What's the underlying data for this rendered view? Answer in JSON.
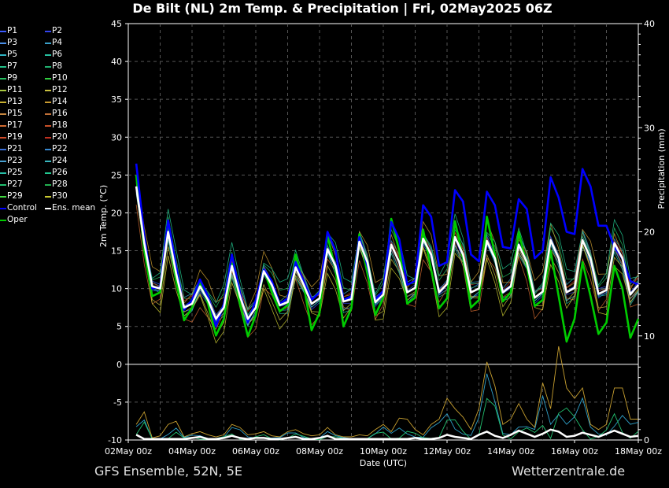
{
  "title": "De Bilt  (NL)  2m Temp. & Precipitation | Fri, 02May2025 06Z",
  "footer": {
    "model": "GFS Ensemble, 52N, 5E",
    "source": "Wetterzentrale.de"
  },
  "legend": [
    {
      "label": "P1",
      "color": "#3b5bff"
    },
    {
      "label": "P2",
      "color": "#3344ee"
    },
    {
      "label": "P3",
      "color": "#4a8fe8"
    },
    {
      "label": "P4",
      "color": "#3aa0c8"
    },
    {
      "label": "P5",
      "color": "#2fb4c4"
    },
    {
      "label": "P6",
      "color": "#26c0a0"
    },
    {
      "label": "P7",
      "color": "#22c088"
    },
    {
      "label": "P8",
      "color": "#20b070"
    },
    {
      "label": "P9",
      "color": "#25c060"
    },
    {
      "label": "P10",
      "color": "#30d040"
    },
    {
      "label": "P11",
      "color": "#a8c840"
    },
    {
      "label": "P12",
      "color": "#c8c040"
    },
    {
      "label": "P13",
      "color": "#c8b030"
    },
    {
      "label": "P14",
      "color": "#c89a30"
    },
    {
      "label": "P15",
      "color": "#c88840"
    },
    {
      "label": "P16",
      "color": "#c07038"
    },
    {
      "label": "P17",
      "color": "#d06a30"
    },
    {
      "label": "P18",
      "color": "#c85028"
    },
    {
      "label": "P19",
      "color": "#d04a28"
    },
    {
      "label": "P20",
      "color": "#c03020"
    },
    {
      "label": "P21",
      "color": "#3a70d8"
    },
    {
      "label": "P22",
      "color": "#3888d0"
    },
    {
      "label": "P23",
      "color": "#48a0d0"
    },
    {
      "label": "P24",
      "color": "#38b8c0"
    },
    {
      "label": "P25",
      "color": "#28c0a8"
    },
    {
      "label": "P26",
      "color": "#22c890"
    },
    {
      "label": "P27",
      "color": "#20c070"
    },
    {
      "label": "P28",
      "color": "#22b050"
    },
    {
      "label": "P29",
      "color": "#40d840"
    },
    {
      "label": "P30",
      "color": "#c8c830"
    },
    {
      "label": "Control",
      "color": "#0000ff"
    },
    {
      "label": "Ens. mean",
      "color": "#ffffff"
    },
    {
      "label": "Oper",
      "color": "#00cc00"
    }
  ],
  "chart_data": {
    "type": "line",
    "xlabel": "Date (UTC)",
    "ylabel": "2m Temp. (°C)",
    "y2label": "Precipitation (mm)",
    "x_ticks": [
      "02May 00z",
      "04May 00z",
      "06May 00z",
      "08May 00z",
      "10May 00z",
      "12May 00z",
      "14May 00z",
      "16May 00z",
      "18May 00z"
    ],
    "x_range_hours": [
      0,
      384
    ],
    "x_step_hours": 6,
    "ylim": [
      -10,
      45
    ],
    "y_ticks": [
      -10,
      -5,
      0,
      5,
      10,
      15,
      20,
      25,
      30,
      35,
      40,
      45
    ],
    "y2lim": [
      0,
      40
    ],
    "y2_ticks": [
      0,
      10,
      20,
      30,
      40
    ],
    "grid": true,
    "series": [
      {
        "name": "Control",
        "color": "#0000ff",
        "x": [
          6,
          12,
          18,
          24,
          30,
          36,
          42,
          48,
          54,
          60,
          66,
          72,
          78,
          84,
          90,
          96,
          102,
          108,
          114,
          120,
          126,
          132,
          138,
          144,
          150,
          156,
          162,
          168,
          174,
          180,
          186,
          192,
          198,
          204,
          210,
          216,
          222,
          228,
          234,
          240,
          246,
          252,
          258,
          264,
          270,
          276,
          282,
          288,
          294,
          300,
          306,
          312,
          318,
          324,
          330,
          336,
          342,
          348,
          354,
          360,
          366,
          372,
          378,
          384
        ],
        "values": [
          26.5,
          17,
          10,
          10.2,
          19,
          13,
          7.2,
          8.5,
          11.2,
          9,
          5,
          8,
          14.5,
          9.5,
          5.5,
          8.5,
          12.5,
          11,
          8,
          8.7,
          13.5,
          11,
          8.5,
          9.5,
          17.5,
          15,
          8.5,
          9,
          16.8,
          13,
          8.5,
          9.7,
          18.8,
          16.5,
          10.5,
          11,
          21,
          19.5,
          13,
          13.5,
          23,
          21.5,
          14.5,
          13.6,
          22.8,
          21,
          15.5,
          15.3,
          21.8,
          20.5,
          14,
          15,
          24.7,
          22,
          17.5,
          17.2,
          25.8,
          23.5,
          18.3,
          18.3,
          15.5,
          14,
          11,
          10.5
        ]
      },
      {
        "name": "Ens. mean",
        "color": "#ffffff",
        "x": [
          6,
          12,
          18,
          24,
          30,
          36,
          42,
          48,
          54,
          60,
          66,
          72,
          78,
          84,
          90,
          96,
          102,
          108,
          114,
          120,
          126,
          132,
          138,
          144,
          150,
          156,
          162,
          168,
          174,
          180,
          186,
          192,
          198,
          204,
          210,
          216,
          222,
          228,
          234,
          240,
          246,
          252,
          258,
          264,
          270,
          276,
          282,
          288,
          294,
          300,
          306,
          312,
          318,
          324,
          330,
          336,
          342,
          348,
          354,
          360,
          366,
          372,
          378,
          384
        ],
        "values": [
          23.5,
          16,
          10.3,
          10,
          17.5,
          12,
          7.5,
          8,
          10.3,
          8.5,
          6,
          7.5,
          13,
          9,
          6,
          7.5,
          12.3,
          10.5,
          7.8,
          8.2,
          12.8,
          10.5,
          8,
          8.7,
          15.2,
          13,
          8.3,
          8.6,
          16.2,
          13.5,
          8.2,
          9.2,
          15.8,
          13.5,
          9.5,
          10.1,
          16.6,
          14.5,
          9.5,
          10.6,
          16.8,
          14.5,
          9.5,
          10,
          16.3,
          14,
          9.5,
          10.3,
          15.8,
          13.5,
          8.8,
          9.6,
          16.4,
          14,
          9.5,
          10.1,
          16.4,
          14,
          9.3,
          9.8,
          16,
          14,
          9.2,
          10.5
        ]
      },
      {
        "name": "Oper",
        "color": "#00cc00",
        "x": [
          6,
          12,
          18,
          24,
          30,
          36,
          42,
          48,
          54,
          60,
          66,
          72,
          78,
          84,
          90,
          96,
          102,
          108,
          114,
          120,
          126,
          132,
          138,
          144,
          150,
          156,
          162,
          168,
          174,
          180,
          186,
          192,
          198,
          204,
          210,
          216,
          222,
          228,
          234,
          240,
          246,
          252,
          258,
          264,
          270,
          276,
          282,
          288,
          294,
          300,
          306,
          312,
          318,
          324,
          330,
          336,
          342,
          348,
          354,
          360,
          366,
          372,
          378,
          384
        ],
        "values": [
          25,
          15,
          9,
          9.5,
          18,
          11,
          5.8,
          7.5,
          10.8,
          8,
          3.8,
          6,
          13.3,
          8,
          3.7,
          6.5,
          12.5,
          9.5,
          7,
          7.8,
          14.5,
          10.5,
          4.5,
          6.8,
          17,
          12.5,
          5,
          7.4,
          17.2,
          12,
          6.5,
          8.8,
          19.2,
          15,
          8,
          8.8,
          17.8,
          12.5,
          7.4,
          8.7,
          18.9,
          14,
          7.5,
          8.5,
          19.5,
          14.5,
          8.3,
          9.5,
          17.5,
          13,
          7.7,
          8.5,
          15,
          9,
          3,
          6,
          13.5,
          9,
          4,
          5.5,
          13,
          10,
          3.5,
          6
        ]
      }
    ],
    "ensemble_spread": [
      {
        "name": "P1",
        "color": "#3b5bff",
        "offset": 0.7
      },
      {
        "name": "P2",
        "color": "#3344ee",
        "offset": -0.8
      },
      {
        "name": "P4",
        "color": "#3aa0c8",
        "offset": 1.4
      },
      {
        "name": "P6",
        "color": "#26c0a0",
        "offset": -1.5
      },
      {
        "name": "P9",
        "color": "#25c060",
        "offset": 2.0
      },
      {
        "name": "P12",
        "color": "#c8c040",
        "offset": -2.2
      },
      {
        "name": "P14",
        "color": "#c89a30",
        "offset": 2.6
      },
      {
        "name": "P17",
        "color": "#d06a30",
        "offset": -2.8
      },
      {
        "name": "P20",
        "color": "#c03020",
        "offset": 1.0
      },
      {
        "name": "P23",
        "color": "#48a0d0",
        "offset": -1.1
      },
      {
        "name": "P26",
        "color": "#22c890",
        "offset": 3.2
      },
      {
        "name": "P30",
        "color": "#c8c830",
        "offset": -3.3
      }
    ],
    "precipitation": {
      "x": [
        6,
        12,
        18,
        24,
        30,
        36,
        42,
        48,
        54,
        60,
        66,
        72,
        78,
        84,
        90,
        96,
        102,
        108,
        114,
        120,
        126,
        132,
        138,
        144,
        150,
        156,
        162,
        168,
        174,
        180,
        186,
        192,
        198,
        204,
        210,
        216,
        222,
        228,
        234,
        240,
        246,
        252,
        258,
        264,
        270,
        276,
        282,
        288,
        294,
        300,
        306,
        312,
        318,
        324,
        330,
        336,
        342,
        348,
        354,
        360,
        366,
        372,
        378,
        384
      ],
      "mean": [
        0.5,
        0.1,
        0.1,
        0.1,
        0.1,
        0.1,
        0.1,
        0.2,
        0.3,
        0.1,
        0.1,
        0.2,
        0.4,
        0.2,
        0.1,
        0.2,
        0.2,
        0.1,
        0.1,
        0.2,
        0.3,
        0.1,
        0.1,
        0.2,
        0.4,
        0.1,
        0.1,
        0.1,
        0.1,
        0.1,
        0.1,
        0.1,
        0.1,
        0.1,
        0.1,
        0.2,
        0.1,
        0.1,
        0.2,
        0.5,
        0.3,
        0.2,
        0.1,
        0.5,
        0.8,
        0.4,
        0.2,
        0.5,
        0.9,
        0.6,
        0.3,
        0.6,
        1.0,
        0.8,
        0.3,
        0.4,
        0.7,
        0.5,
        0.3,
        0.6,
        0.9,
        0.6,
        0.3,
        0.4
      ],
      "max": [
        1.5,
        2.7,
        0.2,
        0.4,
        1.5,
        1.8,
        0.3,
        0.6,
        0.8,
        0.5,
        0.3,
        0.5,
        1.5,
        1.2,
        0.5,
        0.6,
        0.8,
        0.4,
        0.3,
        0.8,
        1.0,
        0.6,
        0.4,
        0.5,
        1.2,
        0.5,
        0.3,
        0.3,
        0.5,
        0.4,
        1.0,
        1.5,
        0.8,
        2.1,
        2.0,
        1.0,
        0.5,
        1.5,
        2.0,
        4.0,
        3.0,
        2.2,
        1.0,
        3.0,
        7.5,
        5.2,
        1.5,
        2.0,
        3.5,
        2.0,
        1.2,
        5.5,
        3.0,
        9.0,
        5.0,
        4.0,
        5.0,
        1.5,
        1.0,
        1.5,
        5.0,
        5.0,
        2.0,
        2.0
      ]
    }
  }
}
